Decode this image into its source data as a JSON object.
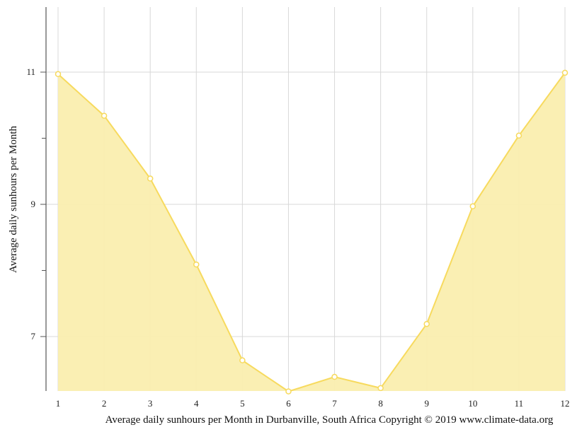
{
  "chart_data": {
    "type": "area",
    "title": "",
    "xlabel": "Average daily sunhours per Month in Durbanville, South Africa Copyright © 2019 www.climate-data.org",
    "ylabel": "Average daily sunhours per Month",
    "categories": [
      "1",
      "2",
      "3",
      "4",
      "5",
      "6",
      "7",
      "8",
      "9",
      "10",
      "11",
      "12"
    ],
    "series": [
      {
        "name": "Average daily sunhours",
        "values": [
          10.97,
          10.34,
          9.39,
          8.09,
          6.64,
          6.17,
          6.39,
          6.22,
          7.19,
          8.97,
          10.04,
          10.99
        ],
        "color": "#f7d94c",
        "fill": "#faedac"
      }
    ],
    "y_ticks": [
      7,
      9,
      11
    ],
    "y_minor_ticks": [
      8,
      10
    ],
    "ylim": [
      6.17,
      12
    ],
    "grid": true,
    "legend": "none"
  },
  "colors": {
    "line": "#f7da5e",
    "fill": "#faeeaf",
    "grid": "#d8d8d8",
    "axis": "#333333"
  }
}
